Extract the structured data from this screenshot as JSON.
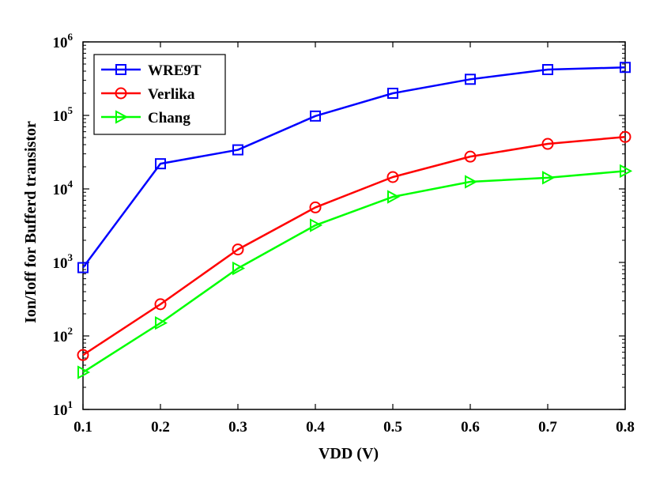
{
  "chart_data": {
    "type": "line",
    "title": "",
    "xlabel": "VDD (V)",
    "ylabel": "Ion/Ioff  for Bufferd transistor",
    "x": [
      0.1,
      0.2,
      0.3,
      0.4,
      0.5,
      0.6,
      0.7,
      0.8
    ],
    "xlim": [
      0.1,
      0.8
    ],
    "xticks": [
      "0.1",
      "0.2",
      "0.3",
      "0.4",
      "0.5",
      "0.6",
      "0.7",
      "0.8"
    ],
    "ylim": [
      10,
      1000000
    ],
    "yscale": "log",
    "yticks": [
      {
        "base": "10",
        "exp": "1"
      },
      {
        "base": "10",
        "exp": "2"
      },
      {
        "base": "10",
        "exp": "3"
      },
      {
        "base": "10",
        "exp": "4"
      },
      {
        "base": "10",
        "exp": "5"
      },
      {
        "base": "10",
        "exp": "6"
      }
    ],
    "grid": false,
    "legend_position": "top-left",
    "series": [
      {
        "name": "WRE9T",
        "color": "#0000ff",
        "marker": "square",
        "values": [
          850,
          22000,
          34000,
          98000,
          200000,
          310000,
          420000,
          450000
        ]
      },
      {
        "name": "Verlika",
        "color": "#ff0000",
        "marker": "circle",
        "values": [
          55,
          270,
          1500,
          5600,
          14500,
          27500,
          41000,
          51000
        ]
      },
      {
        "name": "Chang",
        "color": "#00ff00",
        "marker": "triangle-right",
        "values": [
          32,
          150,
          830,
          3200,
          7800,
          12500,
          14200,
          17500
        ]
      }
    ]
  }
}
